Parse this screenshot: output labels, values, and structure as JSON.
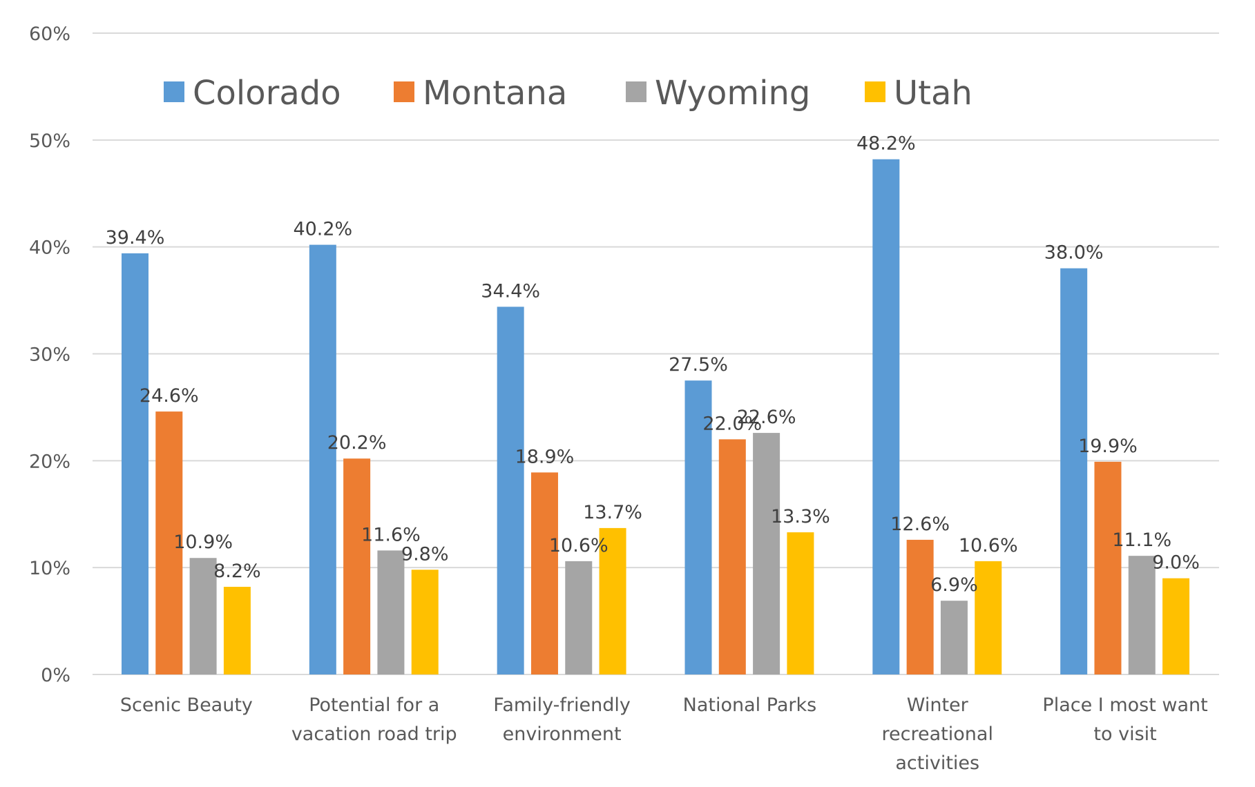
{
  "chart_data": {
    "type": "bar",
    "title": "",
    "xlabel": "",
    "ylabel": "",
    "ylim": [
      0,
      60
    ],
    "y_ticks": [
      "0%",
      "10%",
      "20%",
      "30%",
      "40%",
      "50%",
      "60%"
    ],
    "grid": true,
    "legend_position": "top",
    "categories": [
      [
        "Scenic Beauty"
      ],
      [
        "Potential for a",
        "vacation road trip"
      ],
      [
        "Family-friendly",
        "environment"
      ],
      [
        "National Parks"
      ],
      [
        "Winter",
        "recreational",
        "activities"
      ],
      [
        "Place I most want",
        "to visit"
      ]
    ],
    "series": [
      {
        "name": "Colorado",
        "color": "#5B9BD5",
        "values": [
          39.4,
          40.2,
          34.4,
          27.5,
          48.2,
          38.0
        ],
        "labels": [
          "39.4%",
          "40.2%",
          "34.4%",
          "27.5%",
          "48.2%",
          "38.0%"
        ]
      },
      {
        "name": "Montana",
        "color": "#ED7D31",
        "values": [
          24.6,
          20.2,
          18.9,
          22.0,
          12.6,
          19.9
        ],
        "labels": [
          "24.6%",
          "20.2%",
          "18.9%",
          "22.0%",
          "12.6%",
          "19.9%"
        ]
      },
      {
        "name": "Wyoming",
        "color": "#A5A5A5",
        "values": [
          10.9,
          11.6,
          10.6,
          22.6,
          6.9,
          11.1
        ],
        "labels": [
          "10.9%",
          "11.6%",
          "10.6%",
          "22.6%",
          "6.9%",
          "11.1%"
        ]
      },
      {
        "name": "Utah",
        "color": "#FFC000",
        "values": [
          8.2,
          9.8,
          13.7,
          13.3,
          10.6,
          9.0
        ],
        "labels": [
          "8.2%",
          "9.8%",
          "13.7%",
          "13.3%",
          "10.6%",
          "9.0%"
        ]
      }
    ]
  }
}
